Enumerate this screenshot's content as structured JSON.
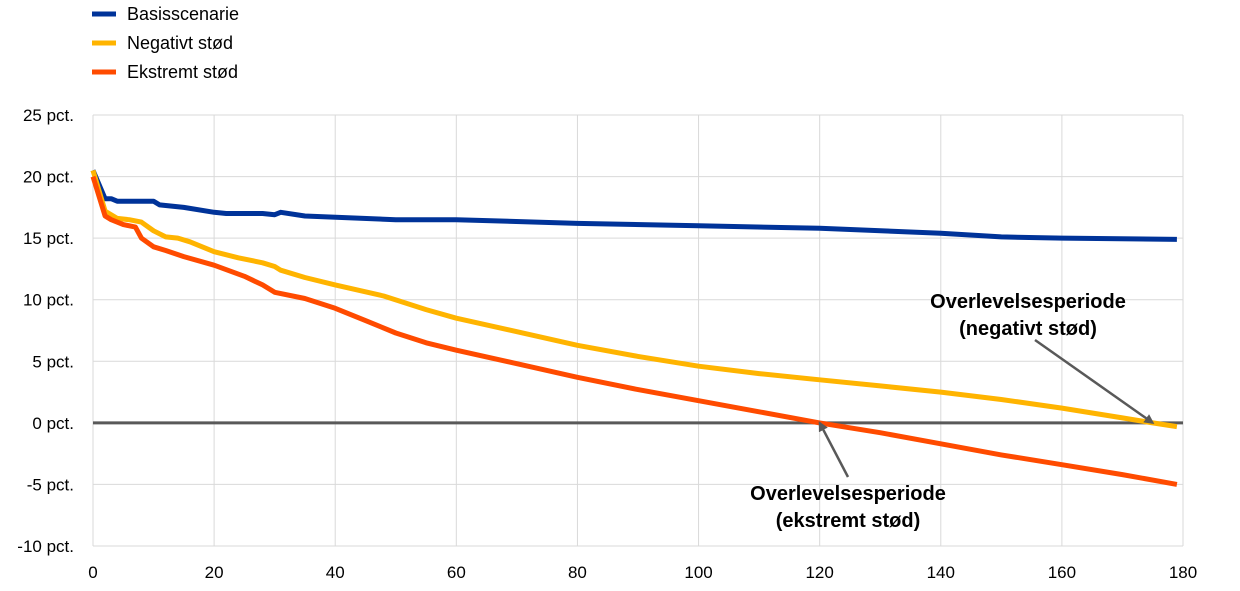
{
  "chart_data": {
    "type": "line",
    "title": "",
    "xlabel": "",
    "ylabel": "",
    "xlim": [
      0,
      180
    ],
    "ylim": [
      -10,
      25
    ],
    "x_ticks": [
      0,
      20,
      40,
      60,
      80,
      100,
      120,
      140,
      160,
      180
    ],
    "y_ticks": [
      {
        "value": 25,
        "label": "25 pct."
      },
      {
        "value": 20,
        "label": "20 pct."
      },
      {
        "value": 15,
        "label": "15 pct."
      },
      {
        "value": 10,
        "label": "10 pct."
      },
      {
        "value": 5,
        "label": "5 pct."
      },
      {
        "value": 0,
        "label": "0 pct."
      },
      {
        "value": -5,
        "label": "-5 pct."
      },
      {
        "value": -10,
        "label": "-10 pct."
      }
    ],
    "grid": true,
    "legend_position": "top-left",
    "series": [
      {
        "name": "Basisscenarie",
        "color": "#003399",
        "points": [
          [
            0,
            20.5
          ],
          [
            2,
            18.2
          ],
          [
            3,
            18.2
          ],
          [
            4,
            18.0
          ],
          [
            10,
            18.0
          ],
          [
            11,
            17.7
          ],
          [
            15,
            17.5
          ],
          [
            20,
            17.1
          ],
          [
            22,
            17.0
          ],
          [
            28,
            17.0
          ],
          [
            30,
            16.9
          ],
          [
            31,
            17.1
          ],
          [
            35,
            16.8
          ],
          [
            50,
            16.5
          ],
          [
            60,
            16.5
          ],
          [
            80,
            16.2
          ],
          [
            100,
            16.0
          ],
          [
            120,
            15.8
          ],
          [
            140,
            15.4
          ],
          [
            150,
            15.1
          ],
          [
            160,
            15.0
          ],
          [
            179,
            14.9
          ]
        ]
      },
      {
        "name": "Negativt stød",
        "color": "#FFB400",
        "points": [
          [
            0,
            20.5
          ],
          [
            2,
            17.2
          ],
          [
            4,
            16.6
          ],
          [
            6,
            16.5
          ],
          [
            8,
            16.3
          ],
          [
            10,
            15.6
          ],
          [
            12,
            15.1
          ],
          [
            14,
            15.0
          ],
          [
            16,
            14.7
          ],
          [
            20,
            13.9
          ],
          [
            24,
            13.4
          ],
          [
            28,
            13.0
          ],
          [
            30,
            12.7
          ],
          [
            31,
            12.4
          ],
          [
            35,
            11.8
          ],
          [
            40,
            11.2
          ],
          [
            48,
            10.3
          ],
          [
            55,
            9.2
          ],
          [
            60,
            8.5
          ],
          [
            70,
            7.4
          ],
          [
            80,
            6.3
          ],
          [
            90,
            5.4
          ],
          [
            100,
            4.6
          ],
          [
            110,
            4.0
          ],
          [
            120,
            3.5
          ],
          [
            130,
            3.0
          ],
          [
            140,
            2.5
          ],
          [
            150,
            1.9
          ],
          [
            160,
            1.2
          ],
          [
            170,
            0.4
          ],
          [
            175,
            0.0
          ],
          [
            179,
            -0.3
          ]
        ]
      },
      {
        "name": "Ekstremt stød",
        "color": "#FF4B00",
        "points": [
          [
            0,
            20.0
          ],
          [
            2,
            16.8
          ],
          [
            3,
            16.5
          ],
          [
            5,
            16.1
          ],
          [
            7,
            15.9
          ],
          [
            8,
            15.0
          ],
          [
            10,
            14.3
          ],
          [
            12,
            14.0
          ],
          [
            15,
            13.5
          ],
          [
            20,
            12.8
          ],
          [
            25,
            11.9
          ],
          [
            28,
            11.2
          ],
          [
            30,
            10.6
          ],
          [
            35,
            10.1
          ],
          [
            40,
            9.3
          ],
          [
            45,
            8.3
          ],
          [
            50,
            7.3
          ],
          [
            55,
            6.5
          ],
          [
            60,
            5.9
          ],
          [
            70,
            4.8
          ],
          [
            80,
            3.7
          ],
          [
            90,
            2.7
          ],
          [
            100,
            1.8
          ],
          [
            110,
            0.9
          ],
          [
            120,
            0.0
          ],
          [
            130,
            -0.8
          ],
          [
            140,
            -1.7
          ],
          [
            150,
            -2.6
          ],
          [
            160,
            -3.4
          ],
          [
            170,
            -4.2
          ],
          [
            179,
            -5.0
          ]
        ]
      }
    ],
    "annotations": [
      {
        "id": "negativt",
        "lines": [
          "Overlevelsesperiode",
          "(negativt stød)"
        ],
        "target": [
          175,
          0
        ]
      },
      {
        "id": "ekstremt",
        "lines": [
          "Overlevelsesperiode",
          "(ekstremt stød)"
        ],
        "target": [
          120,
          0
        ]
      }
    ]
  }
}
